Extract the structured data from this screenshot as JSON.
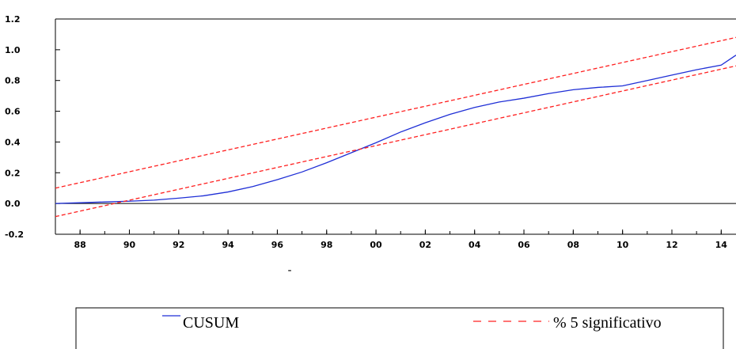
{
  "chart_data": {
    "type": "line",
    "title": "",
    "xlabel": "",
    "ylabel": "",
    "x": [
      "1987",
      "1988",
      "1989",
      "1990",
      "1991",
      "1992",
      "1993",
      "1994",
      "1995",
      "1996",
      "1997",
      "1998",
      "1999",
      "2000",
      "2001",
      "2002",
      "2003",
      "2004",
      "2005",
      "2006",
      "2007",
      "2008",
      "2009",
      "2010",
      "2011",
      "2012",
      "2013",
      "2014",
      "2014.5"
    ],
    "xlim": [
      1987,
      2014.6
    ],
    "ylim": [
      -0.2,
      1.2
    ],
    "yticks": [
      {
        "value": 1.2,
        "label": "1.2"
      },
      {
        "value": 1.0,
        "label": "1.0"
      },
      {
        "value": 0.8,
        "label": "0.8"
      },
      {
        "value": 0.6,
        "label": "0.6"
      },
      {
        "value": 0.4,
        "label": "0.4"
      },
      {
        "value": 0.2,
        "label": "0.2"
      },
      {
        "value": 0.0,
        "label": "0.0"
      },
      {
        "value": -0.2,
        "label": "-0.2"
      }
    ],
    "xticks": [
      {
        "value": 1988,
        "label": "88"
      },
      {
        "value": 1990,
        "label": "90"
      },
      {
        "value": 1992,
        "label": "92"
      },
      {
        "value": 1994,
        "label": "94"
      },
      {
        "value": 1996,
        "label": "96"
      },
      {
        "value": 1998,
        "label": "98"
      },
      {
        "value": 2000,
        "label": "00"
      },
      {
        "value": 2002,
        "label": "02"
      },
      {
        "value": 2004,
        "label": "04"
      },
      {
        "value": 2006,
        "label": "06"
      },
      {
        "value": 2008,
        "label": "08"
      },
      {
        "value": 2010,
        "label": "10"
      },
      {
        "value": 2012,
        "label": "12"
      },
      {
        "value": 2014,
        "label": "14"
      }
    ],
    "grid": false,
    "legend_position": "bottom",
    "series": [
      {
        "name": "CUSUM",
        "color": "#1f2fd6",
        "style": "solid",
        "points": [
          [
            1987.0,
            0.0
          ],
          [
            1988.0,
            0.005
          ],
          [
            1989.0,
            0.01
          ],
          [
            1990.0,
            0.015
          ],
          [
            1991.0,
            0.022
          ],
          [
            1992.0,
            0.035
          ],
          [
            1993.0,
            0.05
          ],
          [
            1994.0,
            0.075
          ],
          [
            1995.0,
            0.11
          ],
          [
            1996.0,
            0.155
          ],
          [
            1997.0,
            0.205
          ],
          [
            1998.0,
            0.265
          ],
          [
            1999.0,
            0.33
          ],
          [
            2000.0,
            0.395
          ],
          [
            2001.0,
            0.465
          ],
          [
            2002.0,
            0.525
          ],
          [
            2003.0,
            0.58
          ],
          [
            2004.0,
            0.625
          ],
          [
            2005.0,
            0.66
          ],
          [
            2006.0,
            0.685
          ],
          [
            2007.0,
            0.715
          ],
          [
            2008.0,
            0.74
          ],
          [
            2009.0,
            0.755
          ],
          [
            2010.0,
            0.765
          ],
          [
            2011.0,
            0.8
          ],
          [
            2012.0,
            0.835
          ],
          [
            2013.0,
            0.87
          ],
          [
            2014.0,
            0.9
          ],
          [
            2014.6,
            0.965
          ]
        ]
      },
      {
        "name": "% 5 significativo",
        "color": "#ff2020",
        "style": "dashed",
        "points": [
          [
            1987.0,
            0.1
          ],
          [
            2014.6,
            1.08
          ]
        ]
      },
      {
        "name": "",
        "color": "#ff2020",
        "style": "dashed",
        "points": [
          [
            1987.0,
            -0.085
          ],
          [
            2014.6,
            0.895
          ]
        ]
      }
    ],
    "zero_line": 0.0
  },
  "legend": {
    "items": [
      {
        "label": "CUSUM",
        "color": "#1f2fd6",
        "style": "solid"
      },
      {
        "label": "% 5 significativo",
        "color": "#ff2020",
        "style": "dashed"
      }
    ]
  },
  "stray_mark": "-"
}
